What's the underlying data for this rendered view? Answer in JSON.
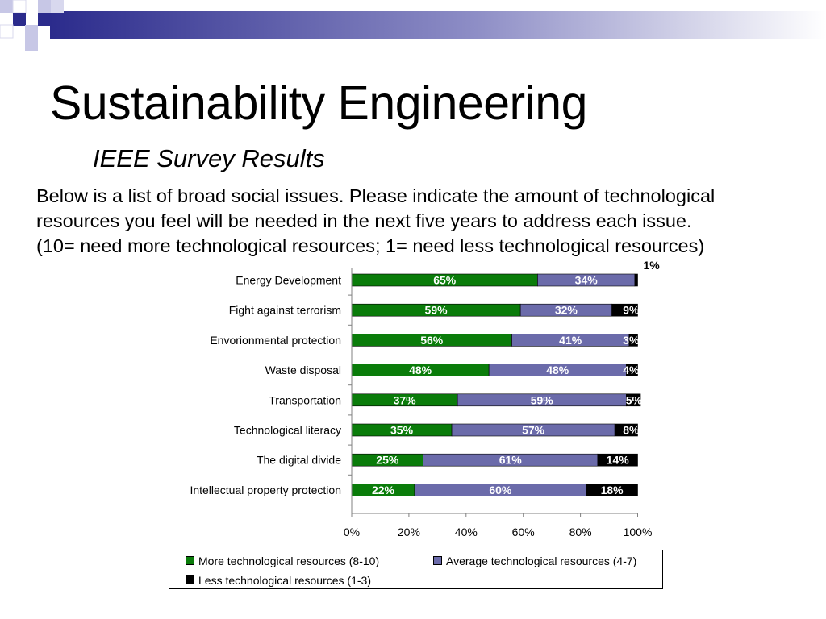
{
  "slide": {
    "title": "Sustainability Engineering",
    "subtitle": "IEEE Survey Results",
    "question_lines": [
      "Below is a list of broad social issues.  Please indicate the amount of technological",
      "resources you feel will be needed in the next five years to address each issue.",
      "(10= need more technological resources; 1= need less technological resources)"
    ]
  },
  "colors": {
    "more": "#0a7c0a",
    "average": "#6b6baa",
    "less": "#000000",
    "decor_dark": "#2b2b8c",
    "decor_light": "#c7c7e6"
  },
  "chart_data": {
    "type": "bar",
    "orientation": "horizontal",
    "stacked": true,
    "categories": [
      "Energy Development",
      "Fight against terrorism",
      "Envorionmental protection",
      "Waste disposal",
      "Transportation",
      "Technological literacy",
      "The digital divide",
      "Intellectual property protection"
    ],
    "series": [
      {
        "name": "More technological resources (8-10)",
        "values": [
          65,
          59,
          56,
          48,
          37,
          35,
          25,
          22
        ],
        "labels": [
          "65%",
          "59%",
          "56%",
          "48%",
          "37%",
          "35%",
          "25%",
          "22%"
        ]
      },
      {
        "name": "Average technological resources (4-7)",
        "values": [
          34,
          32,
          41,
          48,
          59,
          57,
          61,
          60
        ],
        "labels": [
          "34%",
          "32%",
          "41%",
          "48%",
          "59%",
          "57%",
          "61%",
          "60%"
        ]
      },
      {
        "name": "Less technological resources (1-3)",
        "values": [
          1,
          9,
          3,
          4,
          5,
          8,
          14,
          18
        ],
        "labels": [
          "1%",
          "9%",
          "3%",
          "4%",
          "5%",
          "8%",
          "14%",
          "18%"
        ]
      }
    ],
    "xlim": [
      0,
      100
    ],
    "xticks": [
      "0%",
      "20%",
      "40%",
      "60%",
      "80%",
      "100%"
    ],
    "grid": false,
    "legend_position": "bottom"
  }
}
